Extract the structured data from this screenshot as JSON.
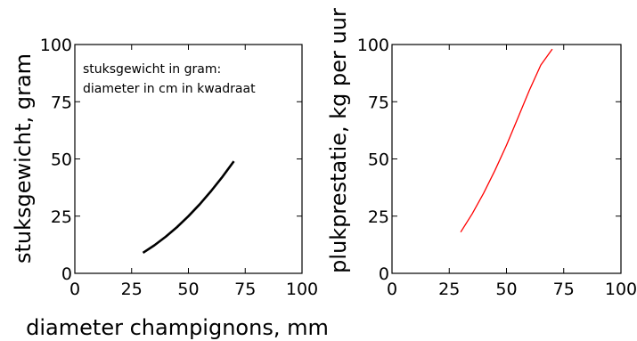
{
  "chart_data": [
    {
      "type": "line",
      "xlabel": "diameter champignons, mm",
      "ylabel": "stuksgewicht, gram",
      "xlim": [
        0,
        100
      ],
      "ylim": [
        0,
        100
      ],
      "xticks": [
        "0",
        "25",
        "50",
        "75",
        "100"
      ],
      "yticks": [
        "0",
        "25",
        "50",
        "75",
        "100"
      ],
      "annotation": [
        "stuksgewicht in gram:",
        "diameter in cm in kwadraat"
      ],
      "series": [
        {
          "color": "#000000",
          "x": [
            30,
            35,
            40,
            45,
            50,
            55,
            60,
            65,
            70
          ],
          "y": [
            9,
            12.25,
            16,
            20.25,
            25,
            30.25,
            36,
            42.25,
            49
          ]
        }
      ]
    },
    {
      "type": "line",
      "xlabel": "",
      "ylabel": "plukprestatie, kg per uur",
      "xlim": [
        0,
        100
      ],
      "ylim": [
        0,
        100
      ],
      "xticks": [
        "0",
        "25",
        "50",
        "75",
        "100"
      ],
      "yticks": [
        "0",
        "25",
        "50",
        "75",
        "100"
      ],
      "series": [
        {
          "color": "#ff0000",
          "x": [
            30,
            35,
            40,
            45,
            50,
            55,
            60,
            65,
            70
          ],
          "y": [
            18,
            26,
            35,
            45,
            56,
            68,
            80,
            91,
            98
          ]
        }
      ]
    }
  ]
}
